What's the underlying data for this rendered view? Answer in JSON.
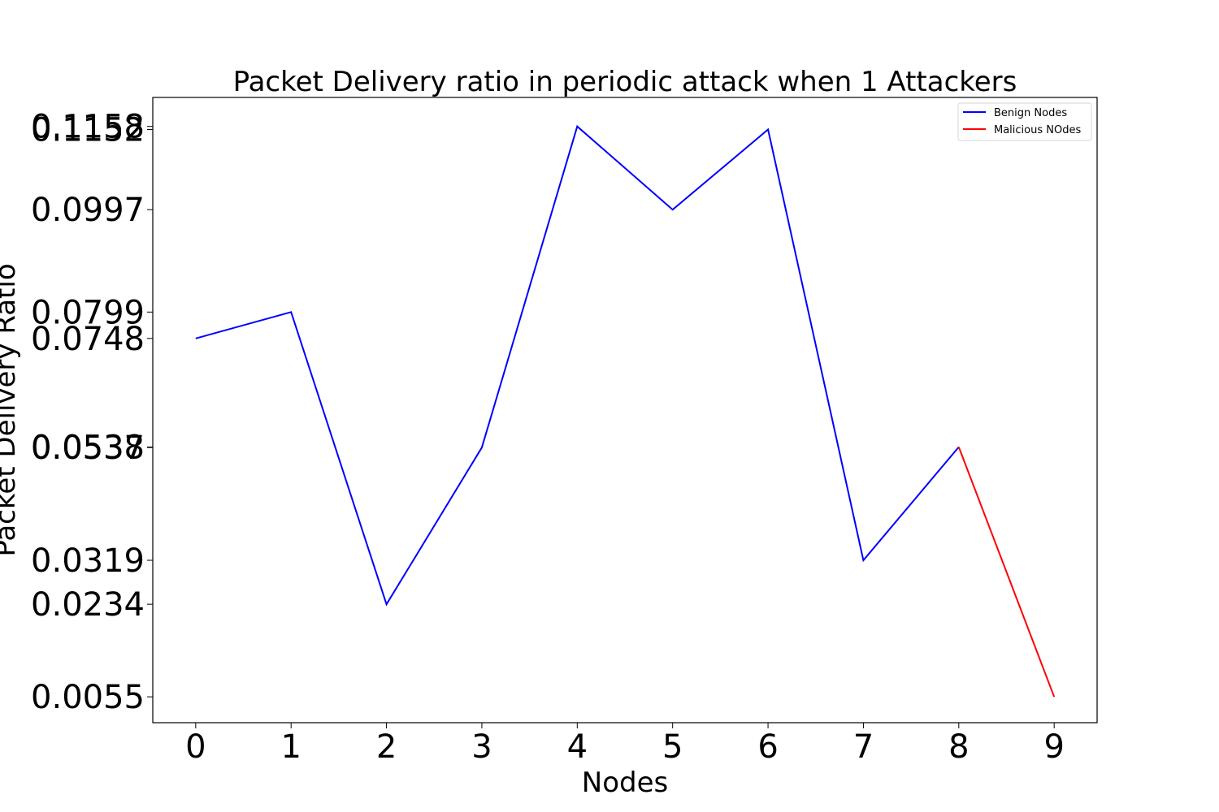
{
  "chart_data": {
    "type": "line",
    "title": "Packet Delivery ratio in periodic attack when 1 Attackers",
    "xlabel": "Nodes",
    "ylabel": "Packet Delivery Ratio",
    "x": [
      0,
      1,
      2,
      3,
      4,
      5,
      6,
      7,
      8,
      9
    ],
    "x_ticks": [
      "0",
      "1",
      "2",
      "3",
      "4",
      "5",
      "6",
      "7",
      "8",
      "9"
    ],
    "y_ticks": [
      "0.0055",
      "0.0234",
      "0.0319",
      "0.0537",
      "0.0538",
      "0.0748",
      "0.0799",
      "0.0997",
      "0.1152",
      "0.1158"
    ],
    "ylim": [
      0.0005,
      0.1214
    ],
    "xlim": [
      -0.45,
      9.45
    ],
    "series": [
      {
        "name": "Benign Nodes",
        "color": "#0000ff",
        "x": [
          0,
          1,
          2,
          3,
          4,
          5,
          6,
          7,
          8
        ],
        "values": [
          0.0748,
          0.0799,
          0.0234,
          0.0537,
          0.1158,
          0.0997,
          0.1152,
          0.0319,
          0.0538
        ]
      },
      {
        "name": "Malicious NOdes",
        "color": "#ff0000",
        "x": [
          8,
          9
        ],
        "values": [
          0.0538,
          0.0055
        ]
      }
    ],
    "legend_position": "top-right",
    "grid": false
  }
}
